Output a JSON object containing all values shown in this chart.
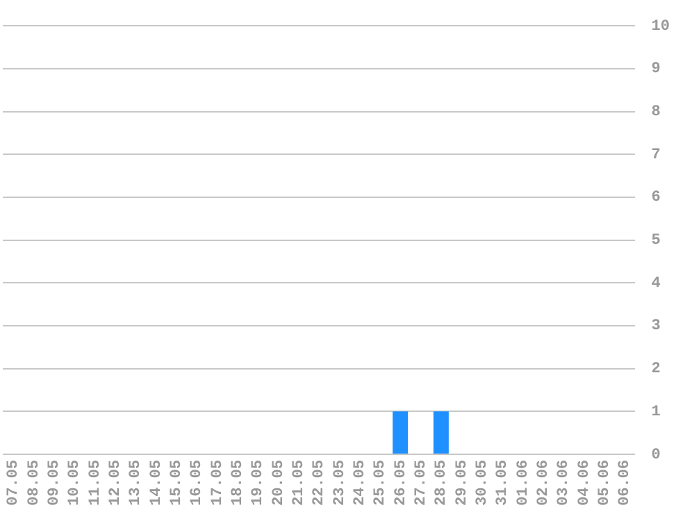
{
  "chart_data": {
    "type": "bar",
    "categories": [
      "07.05",
      "08.05",
      "09.05",
      "10.05",
      "11.05",
      "12.05",
      "13.05",
      "14.05",
      "15.05",
      "16.05",
      "17.05",
      "18.05",
      "19.05",
      "20.05",
      "21.05",
      "22.05",
      "23.05",
      "24.05",
      "25.05",
      "26.05",
      "27.05",
      "28.05",
      "29.05",
      "30.05",
      "31.05",
      "01.06",
      "02.06",
      "03.06",
      "04.06",
      "05.06",
      "06.06"
    ],
    "values": [
      0,
      0,
      0,
      0,
      0,
      0,
      0,
      0,
      0,
      0,
      0,
      0,
      0,
      0,
      0,
      0,
      0,
      0,
      0,
      1,
      0,
      1,
      0,
      0,
      0,
      0,
      0,
      0,
      0,
      0,
      0
    ],
    "color": "#1e90ff",
    "ylim": [
      0,
      10
    ],
    "yticks": [
      0,
      1,
      2,
      3,
      4,
      5,
      6,
      7,
      8,
      9,
      10
    ],
    "grid": "y",
    "legend": false
  }
}
